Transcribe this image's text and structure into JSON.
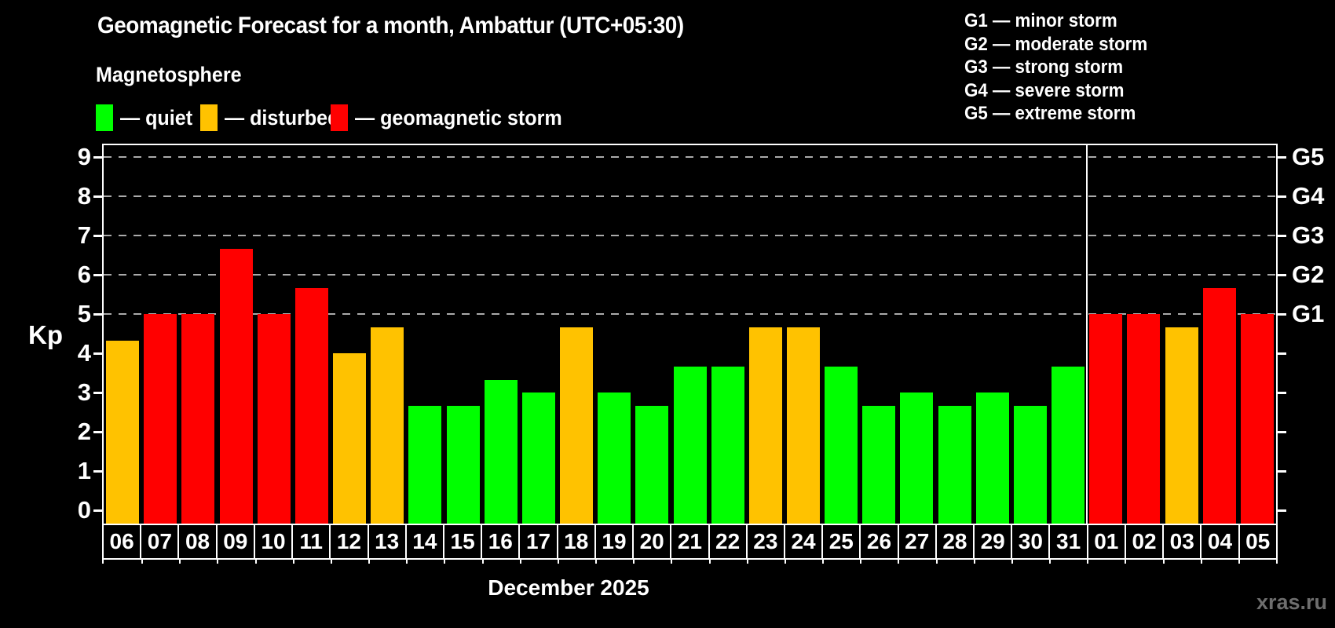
{
  "title": "Geomagnetic Forecast for a month, Ambattur (UTC+05:30)",
  "subtitle": "Magnetosphere",
  "legend": {
    "items": [
      {
        "label": "— quiet",
        "level": "quiet",
        "color": "#00ff00"
      },
      {
        "label": "— disturbed",
        "level": "disturbed",
        "color": "#ffc200"
      },
      {
        "label": "— geomagnetic storm",
        "level": "storm",
        "color": "#ff0000"
      }
    ]
  },
  "g_legend": {
    "lines": [
      "G1 — minor storm",
      "G2 — moderate storm",
      "G3 — strong storm",
      "G4 — severe storm",
      "G5 — extreme storm"
    ]
  },
  "chart_data": {
    "type": "bar",
    "title": "Geomagnetic Forecast for a month, Ambattur (UTC+05:30)",
    "ylabel": "Kp",
    "xlabel": "December 2025",
    "categories": [
      "06",
      "07",
      "08",
      "09",
      "10",
      "11",
      "12",
      "13",
      "14",
      "15",
      "16",
      "17",
      "18",
      "19",
      "20",
      "21",
      "22",
      "23",
      "24",
      "25",
      "26",
      "27",
      "28",
      "29",
      "30",
      "31",
      "01",
      "02",
      "03",
      "04",
      "05"
    ],
    "values": [
      4.33,
      5,
      5,
      6.67,
      5,
      5.67,
      4,
      4.67,
      2.67,
      2.67,
      3.33,
      3,
      4.67,
      3,
      2.67,
      3.67,
      3.67,
      4.67,
      4.67,
      3.67,
      2.67,
      3,
      2.67,
      3,
      2.67,
      3.67,
      5,
      5,
      4.67,
      5.67,
      5
    ],
    "levels": [
      "disturbed",
      "storm",
      "storm",
      "storm",
      "storm",
      "storm",
      "disturbed",
      "disturbed",
      "quiet",
      "quiet",
      "quiet",
      "quiet",
      "disturbed",
      "quiet",
      "quiet",
      "quiet",
      "quiet",
      "disturbed",
      "disturbed",
      "quiet",
      "quiet",
      "quiet",
      "quiet",
      "quiet",
      "quiet",
      "quiet",
      "storm",
      "storm",
      "disturbed",
      "storm",
      "storm"
    ],
    "level_colors": {
      "quiet": "#00ff00",
      "disturbed": "#ffc200",
      "storm": "#ff0000"
    },
    "yticks": [
      0,
      1,
      2,
      3,
      4,
      5,
      6,
      7,
      8,
      9
    ],
    "ylim": [
      -0.34,
      9.36
    ],
    "grid_lines_at": [
      5,
      6,
      7,
      8,
      9
    ],
    "right_axis": {
      "labels": [
        "G1",
        "G2",
        "G3",
        "G4",
        "G5"
      ],
      "kp_positions": [
        5,
        6,
        7,
        8,
        9
      ]
    },
    "month_separator_before": "01",
    "legend_position": "top-left",
    "grid": "dashed-horizontal"
  },
  "watermark": "xras.ru",
  "colors": {
    "background": "#000000",
    "frame": "#ffffff",
    "grid": "#aaaaaa",
    "text": "#ffffff",
    "watermark": "#6e6e6e"
  }
}
